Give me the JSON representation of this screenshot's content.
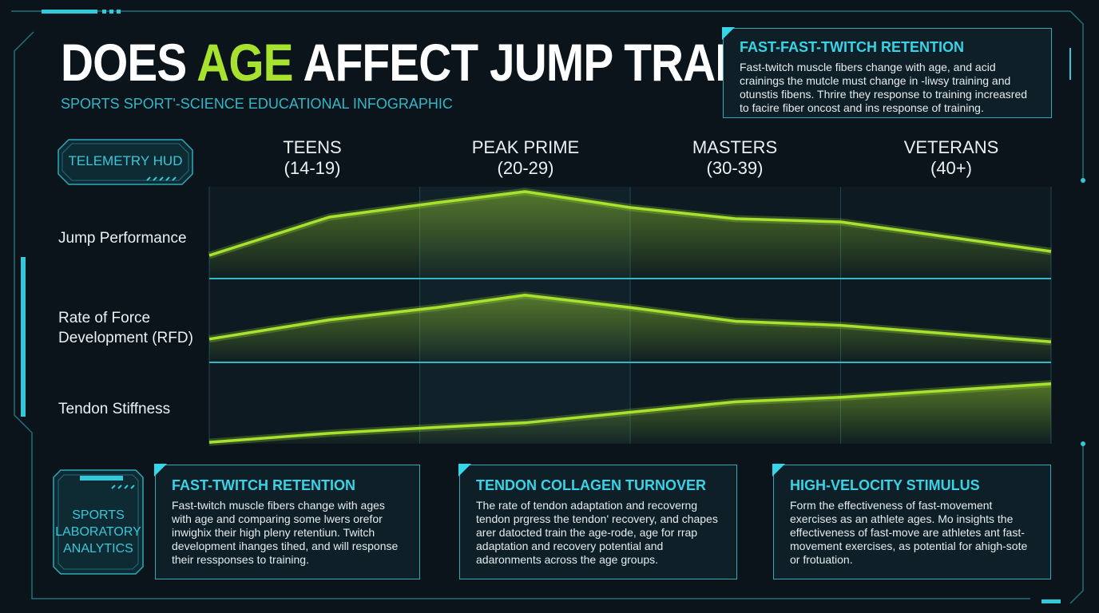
{
  "header": {
    "title_part1": "DOES ",
    "title_accent": "AGE",
    "title_part2": " AFFECT JUMP TRAINING?",
    "subtitle": "SPORTS SPORT'-SCIENCE EDUCATIONAL INFOGRAPHIC"
  },
  "top_panel": {
    "heading": "FAST-FAST-TWITCH RETENTION",
    "body": "Fast-twitch muscle fibers change with age, and acid crainings the mutcle must change in -liwsy training and otunstis fibens. Thrire they response to training increasred to facire fiber oncost and ins response of training."
  },
  "hud_badge": {
    "label": "TELEMETRY HUD"
  },
  "lab_badge": {
    "line1": "SPORTS",
    "line2": "LABORATORY",
    "line3": "ANALYTICS"
  },
  "colors": {
    "accent": "#a6e22e",
    "cyan": "#35c8da",
    "background": "#0b141b"
  },
  "chart_data": {
    "type": "line",
    "categories": [
      {
        "name": "TEENS",
        "range": "(14-19)"
      },
      {
        "name": "PEAK PRIME",
        "range": "(20-29)"
      },
      {
        "name": "MASTERS",
        "range": "(30-39)"
      },
      {
        "name": "VETERANS",
        "range": "(40+)"
      }
    ],
    "x": [
      0,
      0.57,
      1.08,
      1.5,
      2.0,
      2.5,
      3.0,
      4.0
    ],
    "y_scale": [
      0,
      100
    ],
    "series": [
      {
        "name": "Jump Performance",
        "values": [
          20,
          68,
          86,
          100,
          80,
          66,
          62,
          25
        ]
      },
      {
        "name": "Rate of Force Development (RFD)",
        "values": [
          20,
          48,
          66,
          84,
          66,
          46,
          40,
          16
        ]
      },
      {
        "name": "Tendon Stiffness",
        "values": [
          2,
          14,
          22,
          28,
          42,
          56,
          62,
          80
        ]
      }
    ],
    "title": "",
    "xlabel": "",
    "ylabel": "",
    "grid": true
  },
  "cards": [
    {
      "heading": "FAST-TWITCH RETENTION",
      "body": "Fast-twitch muscle fibers change with ages with age and comparing some lwers orefor inwighix their high pleny retentiun. Twitch development ihanges tihed, and will response their ressponses to training."
    },
    {
      "heading": "TENDON COLLAGEN TURNOVER",
      "body": "The rate of tendon adaptation and recoverng tendon prgress the tendon' recovery, and chapes arer datocted train the age-rode, age for rrap adaptation and recovery potential and adaronments across the age groups."
    },
    {
      "heading": "HIGH-VELOCITY STIMULUS",
      "body": "Form the effectiveness of fast-movement exercises as an athlete ages. Mo insights the effectiveness of fast-move are athletes ant fast-movement exercises, as potential for ahigh-sote or frotuation."
    }
  ]
}
